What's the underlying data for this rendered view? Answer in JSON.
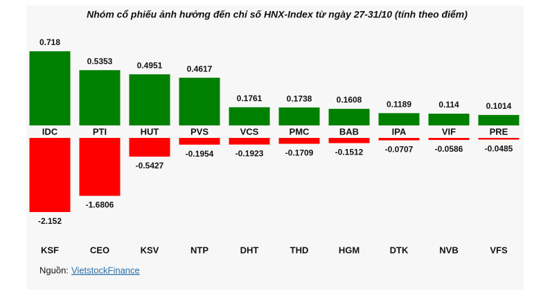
{
  "chart_data": {
    "type": "bar",
    "title": "Nhóm cổ phiếu ảnh hưởng đến chỉ số HNX-Index từ ngày 27-31/10 (tính theo điểm)",
    "series": [
      {
        "categories": [
          "IDC",
          "PTI",
          "HUT",
          "PVS",
          "VCS",
          "PMC",
          "BAB",
          "IPA",
          "VIF",
          "PRE"
        ],
        "values": [
          0.718,
          0.5353,
          0.4951,
          0.4617,
          0.1761,
          0.1738,
          0.1608,
          0.1189,
          0.114,
          0.1014
        ],
        "color": "#008000"
      },
      {
        "categories": [
          "KSF",
          "CEO",
          "KSV",
          "NTP",
          "DHT",
          "THD",
          "HGM",
          "DTK",
          "NVB",
          "VFS"
        ],
        "values": [
          -2.152,
          -1.6806,
          -0.5427,
          -0.1954,
          -0.1923,
          -0.1709,
          -0.1512,
          -0.0707,
          -0.0586,
          -0.0485
        ],
        "color": "#ff0000"
      }
    ],
    "source_label": "Nguồn:",
    "source_link": "VietstockFinance"
  }
}
